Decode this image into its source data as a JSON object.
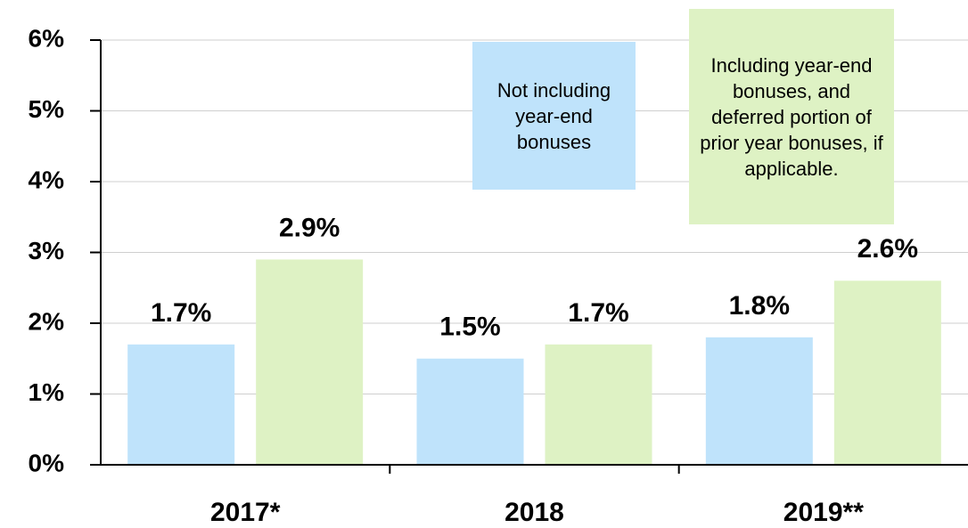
{
  "chart_data": {
    "type": "bar",
    "categories": [
      "2017*",
      "2018",
      "2019**"
    ],
    "series": [
      {
        "name": "Not including year-end bonuses",
        "color": "#bfe3fb",
        "values": [
          1.7,
          1.5,
          1.8
        ],
        "value_labels": [
          "1.7%",
          "1.5%",
          "1.8%"
        ]
      },
      {
        "name": "Including year-end bonuses, and deferred portion of prior year bonuses, if applicable.",
        "color": "#def2c4",
        "values": [
          2.9,
          1.7,
          2.6
        ],
        "value_labels": [
          "2.9%",
          "1.7%",
          "2.6%"
        ]
      }
    ],
    "ylim": [
      0,
      6
    ],
    "yticks": [
      {
        "value": 0,
        "label": "0%"
      },
      {
        "value": 1,
        "label": "1%"
      },
      {
        "value": 2,
        "label": "2%"
      },
      {
        "value": 3,
        "label": "3%"
      },
      {
        "value": 4,
        "label": "4%"
      },
      {
        "value": 5,
        "label": "5%"
      },
      {
        "value": 6,
        "label": "6%"
      }
    ],
    "grid": true
  }
}
